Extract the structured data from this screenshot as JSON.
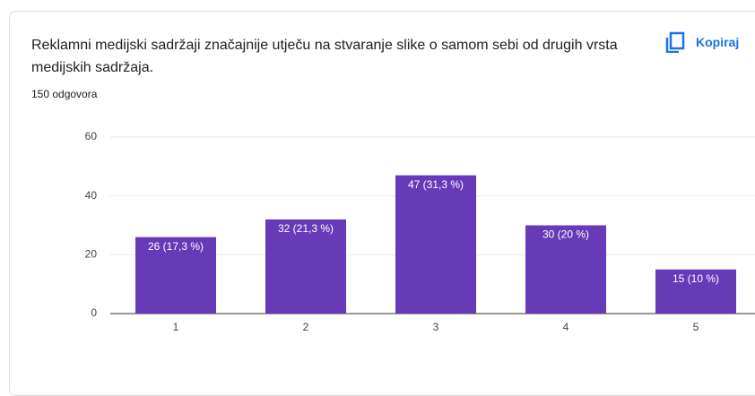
{
  "header": {
    "button": "Kopiraj"
  },
  "chart_data": {
    "type": "bar",
    "title": "Reklamni medijski sadržaji značajnije utječu na stvaranje slike o samom sebi od drugih vrsta medijskih sadržaja.",
    "subtitle": "150 odgovora",
    "categories": [
      "1",
      "2",
      "3",
      "4",
      "5"
    ],
    "values": [
      26,
      32,
      47,
      30,
      15
    ],
    "value_labels": [
      "26 (17,3 %)",
      "32 (21,3 %)",
      "47 (31,3 %)",
      "30 (20 %)",
      "15 (10 %)"
    ],
    "color": "#673ab7",
    "ylim": [
      0,
      60
    ],
    "yticks": [
      0,
      20,
      40,
      60
    ],
    "grid": true
  }
}
